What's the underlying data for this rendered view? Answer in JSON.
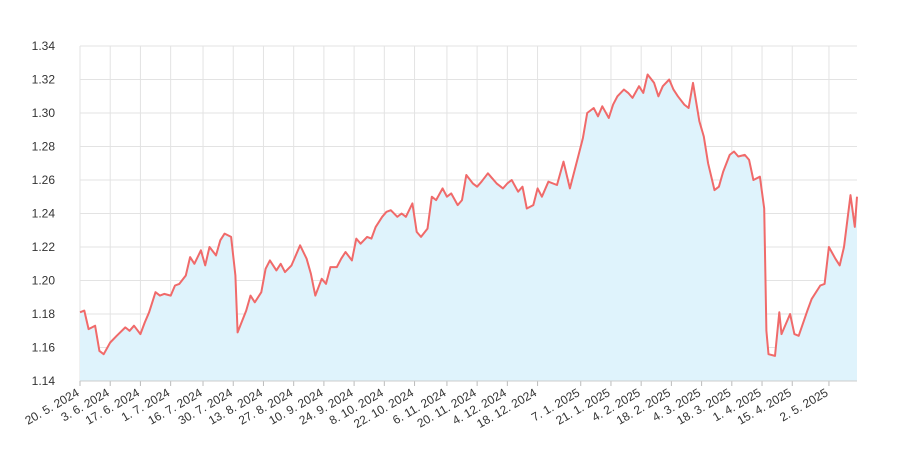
{
  "chart_data": {
    "type": "area",
    "x": [
      "2024-05-20",
      "2024-05-22",
      "2024-05-24",
      "2024-05-27",
      "2024-05-29",
      "2024-05-31",
      "2024-06-03",
      "2024-06-06",
      "2024-06-10",
      "2024-06-12",
      "2024-06-14",
      "2024-06-17",
      "2024-06-19",
      "2024-06-21",
      "2024-06-24",
      "2024-06-26",
      "2024-06-28",
      "2024-07-01",
      "2024-07-03",
      "2024-07-05",
      "2024-07-08",
      "2024-07-10",
      "2024-07-12",
      "2024-07-15",
      "2024-07-17",
      "2024-07-19",
      "2024-07-22",
      "2024-07-24",
      "2024-07-26",
      "2024-07-29",
      "2024-07-31",
      "2024-08-01",
      "2024-08-05",
      "2024-08-07",
      "2024-08-09",
      "2024-08-12",
      "2024-08-14",
      "2024-08-16",
      "2024-08-19",
      "2024-08-21",
      "2024-08-23",
      "2024-08-26",
      "2024-08-28",
      "2024-08-30",
      "2024-09-02",
      "2024-09-04",
      "2024-09-06",
      "2024-09-09",
      "2024-09-11",
      "2024-09-13",
      "2024-09-16",
      "2024-09-18",
      "2024-09-20",
      "2024-09-23",
      "2024-09-25",
      "2024-09-27",
      "2024-09-30",
      "2024-10-02",
      "2024-10-04",
      "2024-10-07",
      "2024-10-09",
      "2024-10-11",
      "2024-10-14",
      "2024-10-16",
      "2024-10-18",
      "2024-10-21",
      "2024-10-23",
      "2024-10-25",
      "2024-10-28",
      "2024-10-30",
      "2024-11-01",
      "2024-11-04",
      "2024-11-06",
      "2024-11-08",
      "2024-11-11",
      "2024-11-13",
      "2024-11-15",
      "2024-11-18",
      "2024-11-20",
      "2024-11-22",
      "2024-11-25",
      "2024-11-27",
      "2024-11-29",
      "2024-12-02",
      "2024-12-04",
      "2024-12-06",
      "2024-12-09",
      "2024-12-11",
      "2024-12-13",
      "2024-12-16",
      "2024-12-18",
      "2024-12-20",
      "2024-12-23",
      "2024-12-27",
      "2024-12-30",
      "2025-01-02",
      "2025-01-06",
      "2025-01-08",
      "2025-01-10",
      "2025-01-13",
      "2025-01-15",
      "2025-01-17",
      "2025-01-20",
      "2025-01-22",
      "2025-01-24",
      "2025-01-27",
      "2025-01-29",
      "2025-01-31",
      "2025-02-03",
      "2025-02-05",
      "2025-02-07",
      "2025-02-10",
      "2025-02-12",
      "2025-02-14",
      "2025-02-17",
      "2025-02-19",
      "2025-02-21",
      "2025-02-24",
      "2025-02-26",
      "2025-02-28",
      "2025-03-03",
      "2025-03-05",
      "2025-03-07",
      "2025-03-10",
      "2025-03-12",
      "2025-03-14",
      "2025-03-17",
      "2025-03-19",
      "2025-03-21",
      "2025-03-24",
      "2025-03-26",
      "2025-03-28",
      "2025-03-31",
      "2025-04-02",
      "2025-04-03",
      "2025-04-04",
      "2025-04-07",
      "2025-04-09",
      "2025-04-10",
      "2025-04-14",
      "2025-04-16",
      "2025-04-18",
      "2025-04-22",
      "2025-04-24",
      "2025-04-28",
      "2025-04-30",
      "2025-05-02",
      "2025-05-05",
      "2025-05-07",
      "2025-05-09",
      "2025-05-12",
      "2025-05-14",
      "2025-05-15"
    ],
    "series": [
      {
        "color": "#f06a6a",
        "fill": "#dff3fc",
        "values": [
          1.181,
          1.182,
          1.171,
          1.173,
          1.158,
          1.156,
          1.163,
          1.167,
          1.172,
          1.17,
          1.173,
          1.168,
          1.175,
          1.181,
          1.193,
          1.191,
          1.192,
          1.191,
          1.197,
          1.198,
          1.203,
          1.214,
          1.21,
          1.218,
          1.209,
          1.22,
          1.215,
          1.224,
          1.228,
          1.226,
          1.203,
          1.169,
          1.182,
          1.191,
          1.187,
          1.193,
          1.207,
          1.212,
          1.206,
          1.21,
          1.205,
          1.209,
          1.215,
          1.221,
          1.213,
          1.204,
          1.191,
          1.201,
          1.198,
          1.208,
          1.208,
          1.213,
          1.217,
          1.212,
          1.225,
          1.222,
          1.226,
          1.225,
          1.232,
          1.238,
          1.241,
          1.242,
          1.238,
          1.24,
          1.238,
          1.246,
          1.229,
          1.226,
          1.231,
          1.25,
          1.248,
          1.255,
          1.25,
          1.252,
          1.245,
          1.248,
          1.263,
          1.258,
          1.256,
          1.259,
          1.264,
          1.261,
          1.258,
          1.255,
          1.258,
          1.26,
          1.253,
          1.256,
          1.243,
          1.245,
          1.255,
          1.25,
          1.259,
          1.257,
          1.271,
          1.255,
          1.275,
          1.285,
          1.3,
          1.303,
          1.298,
          1.304,
          1.297,
          1.305,
          1.31,
          1.314,
          1.312,
          1.309,
          1.316,
          1.312,
          1.323,
          1.318,
          1.31,
          1.316,
          1.32,
          1.314,
          1.31,
          1.305,
          1.303,
          1.318,
          1.295,
          1.286,
          1.27,
          1.254,
          1.256,
          1.265,
          1.275,
          1.277,
          1.274,
          1.275,
          1.272,
          1.26,
          1.262,
          1.243,
          1.17,
          1.156,
          1.155,
          1.181,
          1.168,
          1.18,
          1.168,
          1.167,
          1.182,
          1.189,
          1.197,
          1.198,
          1.22,
          1.213,
          1.209,
          1.22,
          1.251,
          1.232,
          1.25
        ]
      }
    ],
    "xlim": [
      "2024-05-20",
      "2025-05-15"
    ],
    "xticks": [
      {
        "value": "2024-05-20",
        "label": "20. 5. 2024"
      },
      {
        "value": "2024-06-03",
        "label": "3. 6. 2024"
      },
      {
        "value": "2024-06-17",
        "label": "17. 6. 2024"
      },
      {
        "value": "2024-07-01",
        "label": "1. 7. 2024"
      },
      {
        "value": "2024-07-16",
        "label": "16. 7. 2024"
      },
      {
        "value": "2024-07-30",
        "label": "30. 7. 2024"
      },
      {
        "value": "2024-08-13",
        "label": "13. 8. 2024"
      },
      {
        "value": "2024-08-27",
        "label": "27. 8. 2024"
      },
      {
        "value": "2024-09-10",
        "label": "10. 9. 2024"
      },
      {
        "value": "2024-09-24",
        "label": "24. 9. 2024"
      },
      {
        "value": "2024-10-08",
        "label": "8. 10. 2024"
      },
      {
        "value": "2024-10-22",
        "label": "22. 10. 2024"
      },
      {
        "value": "2024-11-06",
        "label": "6. 11. 2024"
      },
      {
        "value": "2024-11-20",
        "label": "20. 11. 2024"
      },
      {
        "value": "2024-12-04",
        "label": "4. 12. 2024"
      },
      {
        "value": "2024-12-18",
        "label": "18. 12. 2024"
      },
      {
        "value": "2025-01-07",
        "label": "7. 1. 2025"
      },
      {
        "value": "2025-01-21",
        "label": "21. 1. 2025"
      },
      {
        "value": "2025-02-04",
        "label": "4. 2. 2025"
      },
      {
        "value": "2025-02-18",
        "label": "18. 2. 2025"
      },
      {
        "value": "2025-03-04",
        "label": "4. 3. 2025"
      },
      {
        "value": "2025-03-18",
        "label": "18. 3. 2025"
      },
      {
        "value": "2025-04-01",
        "label": "1. 4. 2025"
      },
      {
        "value": "2025-04-15",
        "label": "15. 4. 2025"
      },
      {
        "value": "2025-05-02",
        "label": "2. 5. 2025"
      }
    ],
    "ylim": [
      1.14,
      1.34
    ],
    "yticks": [
      1.14,
      1.16,
      1.18,
      {
        "value": 1.2,
        "label": "1.20"
      },
      1.22,
      1.24,
      1.26,
      1.28,
      {
        "value": 1.3,
        "label": "1.30"
      },
      1.32,
      1.34
    ],
    "grid": true
  }
}
